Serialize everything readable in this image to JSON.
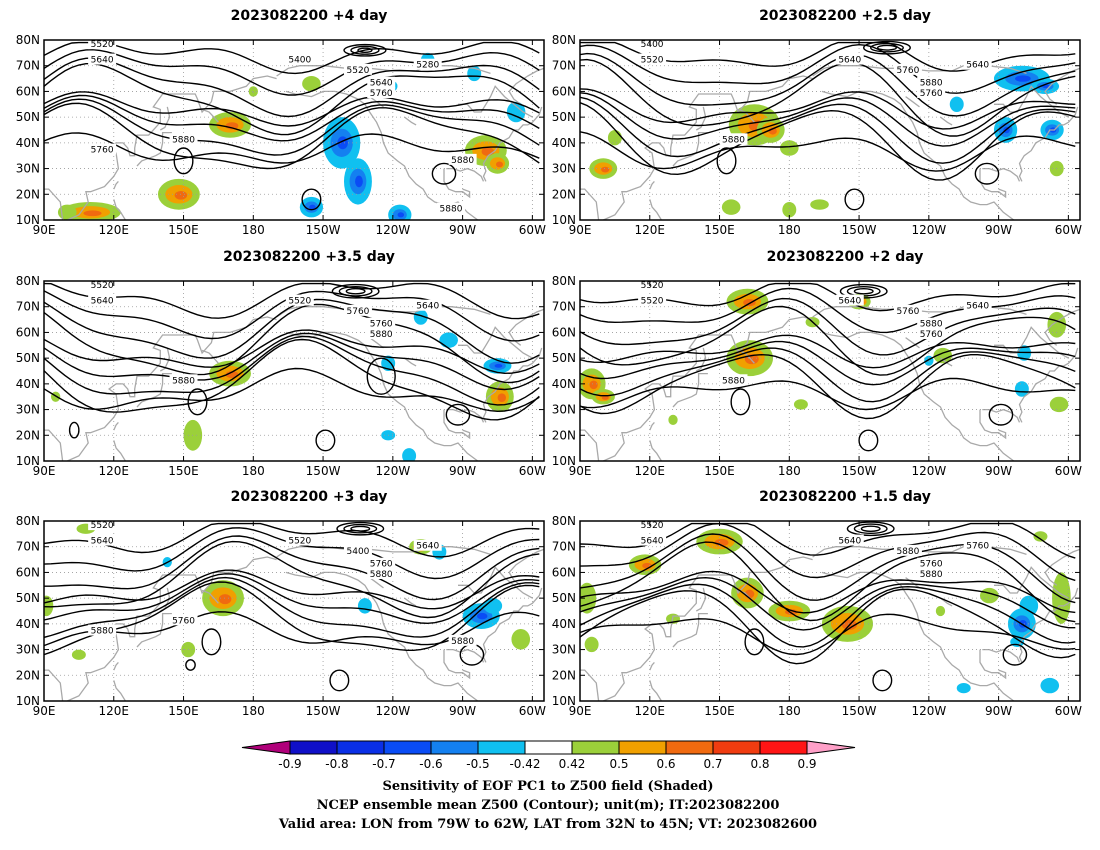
{
  "figure": {
    "panels": [
      {
        "title": "2023082200  +4 day",
        "contour_labels": [
          "5520",
          "5640",
          "5400",
          "5280",
          "5520",
          "5640",
          "5760",
          "5880",
          "5760",
          "5880",
          "5880"
        ],
        "pos_blobs": [
          [
            148,
            20,
            9,
            6
          ],
          [
            110,
            13,
            13,
            4
          ],
          [
            170,
            47,
            9,
            5
          ],
          [
            280,
            37,
            9,
            6
          ],
          [
            285,
            32,
            5,
            4
          ],
          [
            205,
            63,
            4,
            3
          ],
          [
            100,
            13,
            4,
            3
          ],
          [
            180,
            60,
            2,
            2
          ]
        ],
        "neg_blobs": [
          [
            218,
            40,
            8,
            10
          ],
          [
            225,
            25,
            6,
            9
          ],
          [
            205,
            15,
            5,
            4
          ],
          [
            243,
            12,
            5,
            4
          ],
          [
            275,
            67,
            3,
            3
          ],
          [
            293,
            52,
            4,
            4
          ],
          [
            240,
            62,
            2,
            2
          ],
          [
            255,
            72,
            3,
            3
          ]
        ]
      },
      {
        "title": "2023082200  +2.5 day",
        "contour_labels": [
          "5400",
          "5520",
          "5640",
          "5640",
          "5760",
          "5880",
          "5760",
          "5880"
        ],
        "pos_blobs": [
          [
            165,
            47,
            11,
            8
          ],
          [
            172,
            45,
            6,
            5
          ],
          [
            100,
            30,
            6,
            4
          ],
          [
            180,
            38,
            4,
            3
          ],
          [
            295,
            30,
            3,
            3
          ],
          [
            155,
            15,
            4,
            3
          ],
          [
            180,
            14,
            3,
            3
          ],
          [
            105,
            42,
            3,
            3
          ],
          [
            193,
            16,
            4,
            2
          ]
        ],
        "neg_blobs": [
          [
            280,
            65,
            12,
            5
          ],
          [
            273,
            45,
            5,
            5
          ],
          [
            293,
            45,
            5,
            4
          ],
          [
            290,
            62,
            6,
            3
          ],
          [
            252,
            55,
            3,
            3
          ]
        ]
      },
      {
        "title": "2023082200  +3.5 day",
        "contour_labels": [
          "5520",
          "5640",
          "5520",
          "5640",
          "5760",
          "5760",
          "5880",
          "5880"
        ],
        "pos_blobs": [
          [
            170,
            44,
            9,
            5
          ],
          [
            286,
            35,
            6,
            6
          ],
          [
            154,
            20,
            4,
            6
          ],
          [
            95,
            35,
            2,
            2
          ]
        ],
        "neg_blobs": [
          [
            238,
            48,
            3,
            3
          ],
          [
            264,
            57,
            4,
            3
          ],
          [
            285,
            47,
            6,
            3
          ],
          [
            247,
            12,
            3,
            3
          ],
          [
            252,
            66,
            3,
            3
          ],
          [
            238,
            20,
            3,
            2
          ]
        ],
        "closed_lows": [
          [
            103,
            22,
            2,
            3
          ],
          [
            235,
            43,
            6,
            7
          ]
        ]
      },
      {
        "title": "2023082200  +2 day",
        "contour_labels": [
          "5520",
          "5520",
          "5640",
          "5640",
          "5760",
          "5880",
          "5760",
          "5880"
        ],
        "pos_blobs": [
          [
            163,
            50,
            10,
            7
          ],
          [
            162,
            72,
            9,
            5
          ],
          [
            95,
            40,
            6,
            6
          ],
          [
            100,
            35,
            5,
            3
          ],
          [
            210,
            72,
            5,
            3
          ],
          [
            296,
            32,
            4,
            3
          ],
          [
            295,
            63,
            4,
            5
          ],
          [
            246,
            51,
            4,
            3
          ],
          [
            190,
            64,
            3,
            2
          ],
          [
            185,
            32,
            3,
            2
          ],
          [
            130,
            26,
            2,
            2
          ]
        ],
        "neg_blobs": [
          [
            280,
            38,
            3,
            3
          ],
          [
            281,
            52,
            3,
            3
          ],
          [
            240,
            49,
            2,
            2
          ]
        ]
      },
      {
        "title": "2023082200  +3 day",
        "contour_labels": [
          "5520",
          "5640",
          "5520",
          "5640",
          "5400",
          "5760",
          "5880",
          "5760",
          "5880",
          "5880"
        ],
        "pos_blobs": [
          [
            167,
            50,
            9,
            7
          ],
          [
            91,
            47,
            3,
            4
          ],
          [
            152,
            30,
            3,
            3
          ],
          [
            105,
            28,
            3,
            2
          ],
          [
            295,
            34,
            4,
            4
          ],
          [
            252,
            70,
            5,
            3
          ],
          [
            108,
            77,
            4,
            2
          ]
        ],
        "neg_blobs": [
          [
            278,
            43,
            8,
            5
          ],
          [
            283,
            47,
            4,
            3
          ],
          [
            143,
            64,
            2,
            2
          ],
          [
            228,
            47,
            3,
            3
          ],
          [
            260,
            68,
            3,
            3
          ]
        ],
        "closed_lows": [
          [
            153,
            24,
            2,
            2
          ]
        ]
      },
      {
        "title": "2023082200  +1.5 day",
        "contour_labels": [
          "5520",
          "5640",
          "5640",
          "5760",
          "5880",
          "5760",
          "5880"
        ],
        "pos_blobs": [
          [
            150,
            72,
            10,
            5
          ],
          [
            205,
            40,
            11,
            7
          ],
          [
            180,
            45,
            9,
            4
          ],
          [
            118,
            63,
            7,
            4
          ],
          [
            162,
            52,
            7,
            6
          ],
          [
            93,
            50,
            4,
            6
          ],
          [
            95,
            32,
            3,
            3
          ],
          [
            297,
            50,
            4,
            10
          ],
          [
            266,
            51,
            4,
            3
          ],
          [
            288,
            74,
            3,
            2
          ],
          [
            130,
            42,
            3,
            2
          ],
          [
            245,
            45,
            2,
            2
          ]
        ],
        "neg_blobs": [
          [
            280,
            40,
            6,
            6
          ],
          [
            283,
            47,
            4,
            4
          ],
          [
            292,
            16,
            4,
            3
          ],
          [
            255,
            15,
            3,
            2
          ],
          [
            278,
            33,
            3,
            2
          ]
        ]
      }
    ],
    "lon_labels": [
      "90E",
      "120E",
      "150E",
      "180",
      "150W",
      "120W",
      "90W",
      "60W"
    ],
    "lat_labels": [
      "80N",
      "70N",
      "60N",
      "50N",
      "40N",
      "30N",
      "20N",
      "10N"
    ],
    "colorbar": {
      "tick_labels": [
        "-0.9",
        "-0.8",
        "-0.7",
        "-0.6",
        "-0.5",
        "-0.42",
        "0.42",
        "0.5",
        "0.6",
        "0.7",
        "0.8",
        "0.9"
      ],
      "colors": [
        "#b0007a",
        "#1010c8",
        "#0a2fe6",
        "#0a4cf5",
        "#1480f0",
        "#10c0f0",
        "#ffffff",
        "#9bd03a",
        "#f0a000",
        "#f06a10",
        "#f03c10",
        "#ff1515",
        "#ffa0c8"
      ]
    },
    "caption": [
      "Sensitivity of EOF PC1 to Z500 field (Shaded)",
      "NCEP ensemble mean Z500 (Contour); unit(m); IT:2023082200",
      "Valid area: LON from 79W to 62W, LAT from 32N to 45N; VT: 2023082600"
    ],
    "colors": {
      "contour": "#000000",
      "coastline": "#a9a9a9",
      "grid": "#9a9a9a"
    }
  }
}
